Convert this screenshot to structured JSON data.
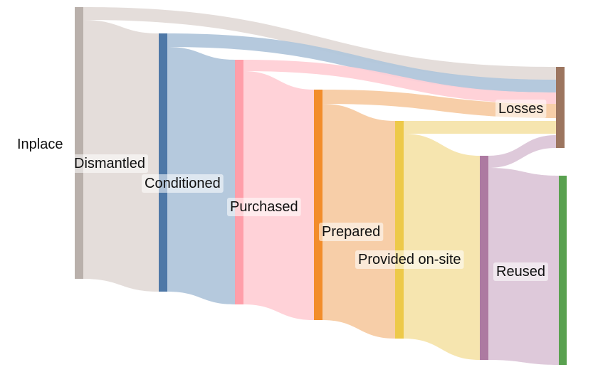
{
  "sankey": {
    "nodes": [
      {
        "id": "inplace",
        "label": "Inplace",
        "color": "#b9b0ab"
      },
      {
        "id": "dismantled",
        "label": "Dismantled",
        "color": "#4e78a7"
      },
      {
        "id": "conditioned",
        "label": "Conditioned",
        "color": "#4e78a7"
      },
      {
        "id": "purchased",
        "label": "Purchased",
        "color": "#ff9ea9"
      },
      {
        "id": "prepared",
        "label": "Prepared",
        "color": "#f28d2b"
      },
      {
        "id": "provided",
        "label": "Provided on-site",
        "color": "#edc949"
      },
      {
        "id": "reused",
        "label": "Reused",
        "color": "#ad7aa1"
      },
      {
        "id": "losses",
        "label": "Losses",
        "color": "#9c755f"
      },
      {
        "id": "reused_end",
        "label": "",
        "color": "#59a14f"
      }
    ],
    "links": [
      {
        "from": "inplace",
        "to": "conditioned",
        "color": "#e3dbd8",
        "value": 94
      },
      {
        "from": "inplace",
        "to": "losses",
        "color": "#e3dbd8",
        "value": 6
      },
      {
        "from": "conditioned",
        "to": "purchased",
        "color": "#b1c6db",
        "value": 88
      },
      {
        "from": "conditioned",
        "to": "losses",
        "color": "#b1c6db",
        "value": 6
      },
      {
        "from": "purchased",
        "to": "prepared",
        "color": "#ffd0d6",
        "value": 84
      },
      {
        "from": "purchased",
        "to": "losses",
        "color": "#ffd0d6",
        "value": 4
      },
      {
        "from": "prepared",
        "to": "provided",
        "color": "#f7cba3",
        "value": 79
      },
      {
        "from": "prepared",
        "to": "losses",
        "color": "#f7cba3",
        "value": 5
      },
      {
        "from": "provided",
        "to": "reused",
        "color": "#f5e4ab",
        "value": 75
      },
      {
        "from": "provided",
        "to": "losses",
        "color": "#f5e4ab",
        "value": 4
      },
      {
        "from": "reused",
        "to": "losses",
        "color": "#dcc6d8",
        "value": 4
      },
      {
        "from": "reused",
        "to": "reused_end",
        "color": "#dcc6d8",
        "value": 71
      }
    ]
  }
}
